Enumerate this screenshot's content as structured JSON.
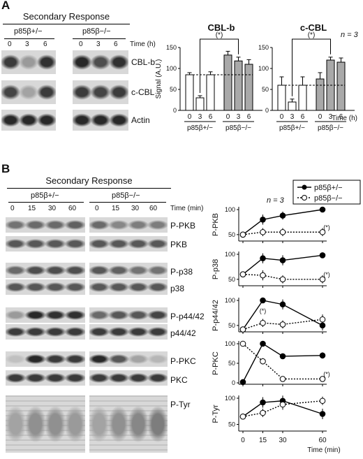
{
  "panel_a": {
    "letter": "A",
    "header": "Secondary Response",
    "genotype_het": "p85β+/−",
    "genotype_ko": "p85β−/−",
    "time_ticks": [
      "0",
      "3",
      "6"
    ],
    "time_label": "Time (h)",
    "blot_labels": [
      "CBL-b",
      "c-CBL",
      "Actin"
    ],
    "n_note": "n = 3"
  },
  "panel_b": {
    "letter": "B",
    "header": "Secondary Response",
    "genotype_het": "p85β+/−",
    "genotype_ko": "p85β−/−",
    "time_ticks": [
      "0",
      "15",
      "30",
      "60"
    ],
    "time_label": "Time (min)",
    "blot_labels": [
      "P-PKB",
      "PKB",
      "P-p38",
      "p38",
      "P-p44/42",
      "p44/42",
      "P-PKC",
      "PKC",
      "P-Tyr"
    ],
    "n_note": "n = 3",
    "legend": [
      "p85β+/−",
      "p85β−/−"
    ]
  },
  "chart_data": [
    {
      "type": "bar",
      "title": "CBL-b",
      "ylabel": "Signal (A.U.)",
      "ylim": [
        0,
        150
      ],
      "yticks": [
        "0",
        "50",
        "100",
        "150"
      ],
      "categories": [
        "0",
        "3",
        "6",
        "0",
        "3",
        "6"
      ],
      "groups": [
        "p85β+/−",
        "p85β−/−"
      ],
      "values": [
        85,
        30,
        85,
        132,
        118,
        110
      ],
      "errors": [
        5,
        5,
        7,
        9,
        9,
        11
      ],
      "significance": "(*)",
      "x_unit": "Time (h)"
    },
    {
      "type": "bar",
      "title": "c-CBL",
      "ylim": [
        0,
        150
      ],
      "yticks": [
        "0",
        "50",
        "100",
        "150"
      ],
      "categories": [
        "0",
        "3",
        "6",
        "0",
        "3",
        "6"
      ],
      "groups": [
        "p85β+/−",
        "p85β−/−"
      ],
      "values": [
        60,
        20,
        60,
        75,
        120,
        115
      ],
      "errors": [
        20,
        7,
        20,
        15,
        7,
        10
      ],
      "significance": "(*)",
      "n_note": "n = 3",
      "x_unit": "Time (h)"
    },
    {
      "type": "line",
      "ylabel": "P-PKB",
      "x": [
        0,
        15,
        30,
        60
      ],
      "ylim": [
        40,
        100
      ],
      "yticks": [
        "50",
        "100"
      ],
      "series": [
        {
          "name": "p85β+/−",
          "values": [
            50,
            80,
            88,
            100
          ],
          "errors": [
            4,
            10,
            8,
            2
          ]
        },
        {
          "name": "p85β−/−",
          "values": [
            50,
            55,
            55,
            55
          ],
          "errors": [
            4,
            8,
            8,
            8
          ]
        }
      ],
      "significance": "(*)"
    },
    {
      "type": "line",
      "ylabel": "P-p38",
      "x": [
        0,
        15,
        30,
        60
      ],
      "ylim": [
        40,
        100
      ],
      "yticks": [
        "50",
        "100"
      ],
      "series": [
        {
          "name": "p85β+/−",
          "values": [
            60,
            92,
            88,
            98
          ],
          "errors": [
            4,
            10,
            10,
            2
          ]
        },
        {
          "name": "p85β−/−",
          "values": [
            60,
            58,
            50,
            50
          ],
          "errors": [
            4,
            10,
            8,
            8
          ]
        }
      ],
      "significance": "(*)"
    },
    {
      "type": "line",
      "ylabel": "P-p44/42",
      "x": [
        0,
        15,
        30,
        60
      ],
      "ylim": [
        40,
        100
      ],
      "yticks": [
        "50",
        "100"
      ],
      "series": [
        {
          "name": "p85β+/−",
          "values": [
            42,
            100,
            92,
            50
          ],
          "errors": [
            3,
            2,
            10,
            10
          ]
        },
        {
          "name": "p85β−/−",
          "values": [
            42,
            55,
            52,
            62
          ],
          "errors": [
            3,
            8,
            8,
            10
          ]
        }
      ],
      "significance": "(*)"
    },
    {
      "type": "line",
      "ylabel": "P-PKC",
      "x": [
        0,
        15,
        30,
        60
      ],
      "ylim": [
        0,
        100
      ],
      "yticks": [
        "0",
        "50",
        "100"
      ],
      "series": [
        {
          "name": "p85β+/−",
          "values": [
            2,
            100,
            68,
            70
          ],
          "errors": [
            2,
            2,
            5,
            8
          ]
        },
        {
          "name": "p85β−/−",
          "values": [
            100,
            55,
            10,
            10
          ],
          "errors": [
            2,
            8,
            5,
            5
          ]
        }
      ],
      "significance": "(*)"
    },
    {
      "type": "line",
      "ylabel": "P-Tyr",
      "x": [
        0,
        15,
        30,
        60
      ],
      "ylim": [
        40,
        100
      ],
      "yticks": [
        "50",
        "100"
      ],
      "xlabel": "Time (min)",
      "xticks": [
        "0",
        "15",
        "30",
        "60"
      ],
      "series": [
        {
          "name": "p85β+/−",
          "values": [
            65,
            92,
            95,
            70
          ],
          "errors": [
            5,
            10,
            10,
            10
          ]
        },
        {
          "name": "p85β−/−",
          "values": [
            65,
            72,
            88,
            95
          ],
          "errors": [
            5,
            8,
            10,
            8
          ]
        }
      ]
    }
  ]
}
